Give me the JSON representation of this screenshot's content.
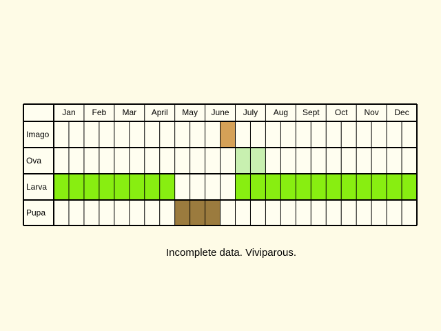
{
  "months": [
    "Jan",
    "Feb",
    "Mar",
    "Apr",
    "May",
    "June",
    "July",
    "Aug",
    "Sept",
    "Oct",
    "Nov",
    "Dec"
  ],
  "month_labels": [
    "Jan",
    "Feb",
    "Mar",
    "April",
    "May",
    "June",
    "July",
    "Aug",
    "Sept",
    "Oct",
    "Nov",
    "Dec"
  ],
  "stages": [
    {
      "label": "Imago",
      "key": "imago",
      "color": "#d5a157",
      "active_half_months": [
        11
      ]
    },
    {
      "label": "Ova",
      "key": "ova",
      "color": "#c8f0b0",
      "active_half_months": [
        12,
        13
      ]
    },
    {
      "label": "Larva",
      "key": "larva",
      "color": "#88ee11",
      "active_half_months": [
        0,
        1,
        2,
        3,
        4,
        5,
        6,
        7,
        12,
        13,
        14,
        15,
        16,
        17,
        18,
        19,
        20,
        21,
        22,
        23
      ]
    },
    {
      "label": "Pupa",
      "key": "pupa",
      "color": "#9b7b3e",
      "active_half_months": [
        8,
        9,
        10
      ]
    }
  ],
  "caption": "Incomplete data. Viviparous."
}
